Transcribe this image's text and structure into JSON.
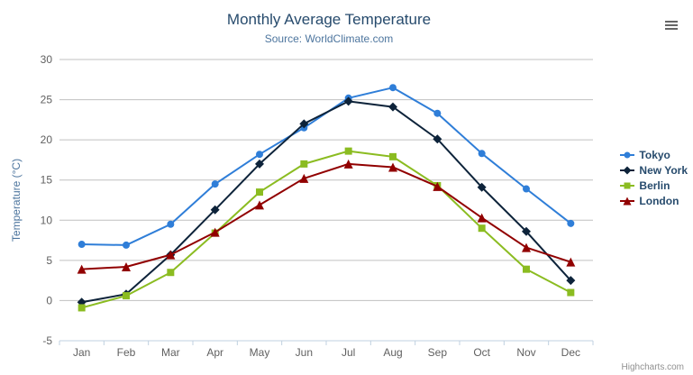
{
  "chart_data": {
    "type": "line",
    "title": "Monthly Average Temperature",
    "subtitle": "Source: WorldClimate.com",
    "categories": [
      "Jan",
      "Feb",
      "Mar",
      "Apr",
      "May",
      "Jun",
      "Jul",
      "Aug",
      "Sep",
      "Oct",
      "Nov",
      "Dec"
    ],
    "ylabel": "Temperature (°C)",
    "ylim": [
      -5,
      30
    ],
    "ytick_interval": 5,
    "ytick_labels": [
      "-5",
      "0",
      "5",
      "10",
      "15",
      "20",
      "25",
      "30"
    ],
    "grid": true,
    "legend_position": "right",
    "series": [
      {
        "name": "Tokyo",
        "color": "#2f7ed8",
        "marker": "circle",
        "values": [
          7.0,
          6.9,
          9.5,
          14.5,
          18.2,
          21.5,
          25.2,
          26.5,
          23.3,
          18.3,
          13.9,
          9.6
        ]
      },
      {
        "name": "New York",
        "color": "#0d233a",
        "marker": "diamond",
        "values": [
          -0.2,
          0.8,
          5.7,
          11.3,
          17.0,
          22.0,
          24.8,
          24.1,
          20.1,
          14.1,
          8.6,
          2.5
        ]
      },
      {
        "name": "Berlin",
        "color": "#8bbc21",
        "marker": "square",
        "values": [
          -0.9,
          0.6,
          3.5,
          8.4,
          13.5,
          17.0,
          18.6,
          17.9,
          14.3,
          9.0,
          3.9,
          1.0
        ]
      },
      {
        "name": "London",
        "color": "#910000",
        "marker": "triangle",
        "values": [
          3.9,
          4.2,
          5.7,
          8.5,
          11.9,
          15.2,
          17.0,
          16.6,
          14.2,
          10.3,
          6.6,
          4.8
        ]
      }
    ],
    "colors": {
      "title": "#274b6d",
      "subtitle": "#4d759e",
      "axis_title": "#4d759e",
      "tick_label": "#606060",
      "gridline": "#c0c0c0",
      "axis_line": "#c0d0e0",
      "legend_text": "#274b6d",
      "credits_text": "#909090"
    },
    "credits": "Highcharts.com"
  }
}
